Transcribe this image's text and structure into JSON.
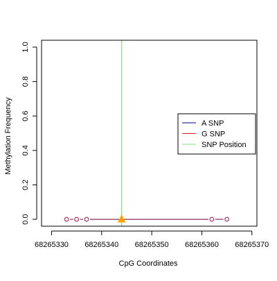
{
  "chart_data": {
    "type": "scatter",
    "xlabel": "CpG Coordinates",
    "ylabel": "Methylation Frequency",
    "xlim": [
      68265328,
      68265371
    ],
    "ylim": [
      -0.04,
      1.04
    ],
    "x_ticks": [
      68265330,
      68265340,
      68265350,
      68265360,
      68265370
    ],
    "x_tick_labels": [
      "68265330",
      "68265340",
      "68265350",
      "68265360",
      "68265370"
    ],
    "y_ticks": [
      0.0,
      0.2,
      0.4,
      0.6,
      0.8,
      1.0
    ],
    "y_tick_labels": [
      "0.0",
      "0.2",
      "0.4",
      "0.6",
      "0.8",
      "1.0"
    ],
    "series": [
      {
        "name": "A SNP",
        "color": "#00008B",
        "x": [
          68265333,
          68265335,
          68265337,
          68265362,
          68265365
        ],
        "y": [
          0,
          0,
          0,
          0,
          0
        ]
      },
      {
        "name": "G SNP",
        "color": "#CD2626",
        "x": [
          68265333,
          68265335,
          68265337,
          68265362,
          68265365
        ],
        "y": [
          0,
          0,
          0,
          0,
          0
        ]
      }
    ],
    "points": {
      "marker": "open-circle",
      "color": "#B03060",
      "x": [
        68265333,
        68265335,
        68265337,
        68265362,
        68265365
      ],
      "y": [
        0,
        0,
        0,
        0,
        0
      ]
    },
    "snp_position": {
      "name": "SNP Position",
      "x": 68265344,
      "color": "#7FE07F",
      "marker_color": "#FFA500",
      "marker_y": 0
    },
    "legend": {
      "placement": "right",
      "entries": [
        {
          "label": "A SNP",
          "color": "#00008B"
        },
        {
          "label": "G SNP",
          "color": "#CD2626"
        },
        {
          "label": "SNP Position",
          "color": "#7FE07F"
        }
      ]
    }
  }
}
